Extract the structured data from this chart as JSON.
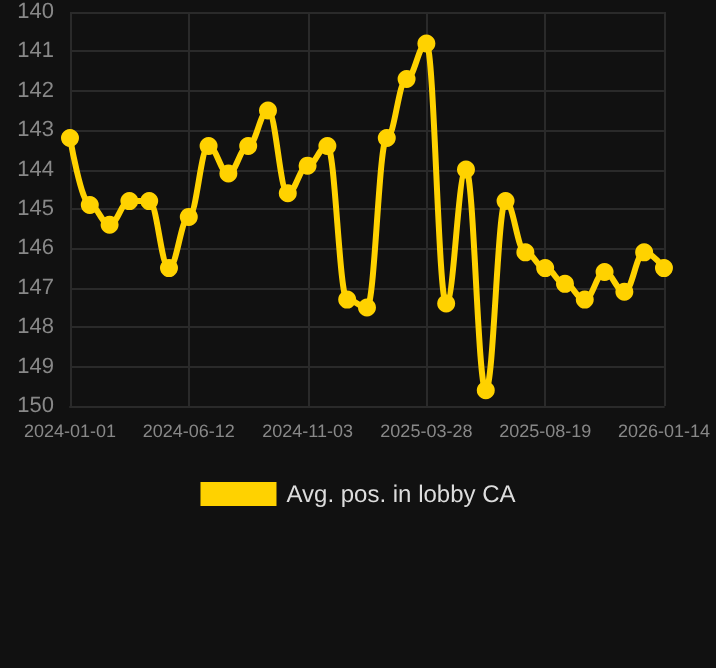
{
  "chart_data": {
    "type": "line",
    "categories": [
      "2024-01-01",
      null,
      null,
      null,
      null,
      null,
      "2024-06-12",
      null,
      null,
      null,
      null,
      null,
      "2024-11-03",
      null,
      null,
      null,
      null,
      null,
      "2025-03-28",
      null,
      null,
      null,
      null,
      null,
      "2025-08-19",
      null,
      null,
      null,
      null,
      null,
      "2026-01-14"
    ],
    "series": [
      {
        "name": "Avg. pos. in lobby CA",
        "color": "#ffd200",
        "values": [
          143.2,
          144.9,
          145.4,
          144.8,
          144.8,
          146.5,
          145.2,
          143.4,
          144.1,
          143.4,
          142.5,
          144.6,
          143.9,
          143.4,
          147.3,
          147.5,
          143.2,
          141.7,
          140.8,
          147.4,
          144.0,
          149.6,
          144.8,
          146.1,
          146.5,
          146.9,
          147.3,
          146.6,
          147.1,
          146.1,
          146.5
        ]
      }
    ],
    "ylim": [
      150,
      140
    ],
    "yticks": [
      140,
      141,
      142,
      143,
      144,
      145,
      146,
      147,
      148,
      149,
      150
    ],
    "grid": true,
    "legend": "bottom",
    "marker": "circle",
    "line_style": "solid"
  }
}
